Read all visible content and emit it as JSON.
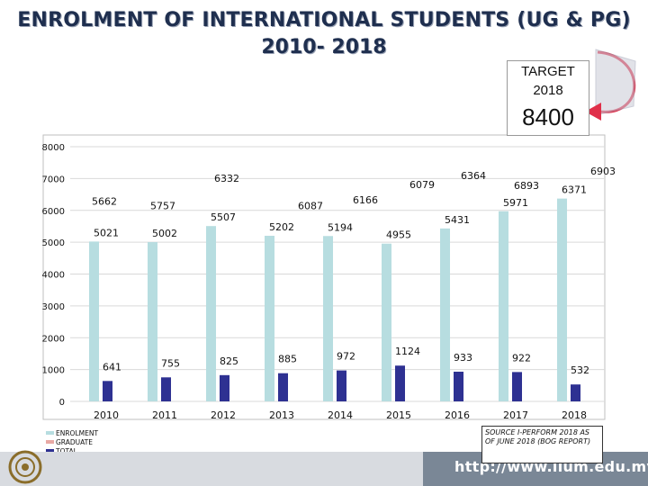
{
  "title_line1": "ENROLMENT OF INTERNATIONAL  STUDENTS (UG & PG)",
  "title_line2": "2010- 2018",
  "target": {
    "label": "TARGET",
    "year": "2018",
    "value": "8400"
  },
  "source_note": "SOURCE I-PERFORM 2018 AS OF JUNE 2018 (BOG REPORT)",
  "footer_url": "http://www.iium.edu.my",
  "colors": {
    "enrolment": "#b7dde0",
    "graduate": "#e8a9a4",
    "total": "#2e3192",
    "arrow": "#e0304a"
  },
  "chart_data": {
    "type": "bar",
    "categories": [
      "2010",
      "2011",
      "2012",
      "2013",
      "2014",
      "2015",
      "2016",
      "2017",
      "2018"
    ],
    "series": [
      {
        "name": "ENROLMENT",
        "values": [
          5021,
          5002,
          5507,
          5202,
          5194,
          4955,
          5431,
          5971,
          6371
        ]
      },
      {
        "name": "GRADUATE",
        "values": [
          641,
          755,
          825,
          885,
          972,
          1124,
          933,
          922,
          532
        ]
      },
      {
        "name": "TOTAL",
        "values": [
          5662,
          5757,
          6332,
          6087,
          6166,
          6079,
          6364,
          6893,
          6903
        ]
      }
    ],
    "bar_series": [
      "ENROLMENT",
      "GRADUATE"
    ],
    "ylim": [
      0,
      8000
    ],
    "yticks": [
      0,
      1000,
      2000,
      3000,
      4000,
      5000,
      6000,
      7000,
      8000
    ],
    "grid": true,
    "legend_position": "bottom-left"
  }
}
